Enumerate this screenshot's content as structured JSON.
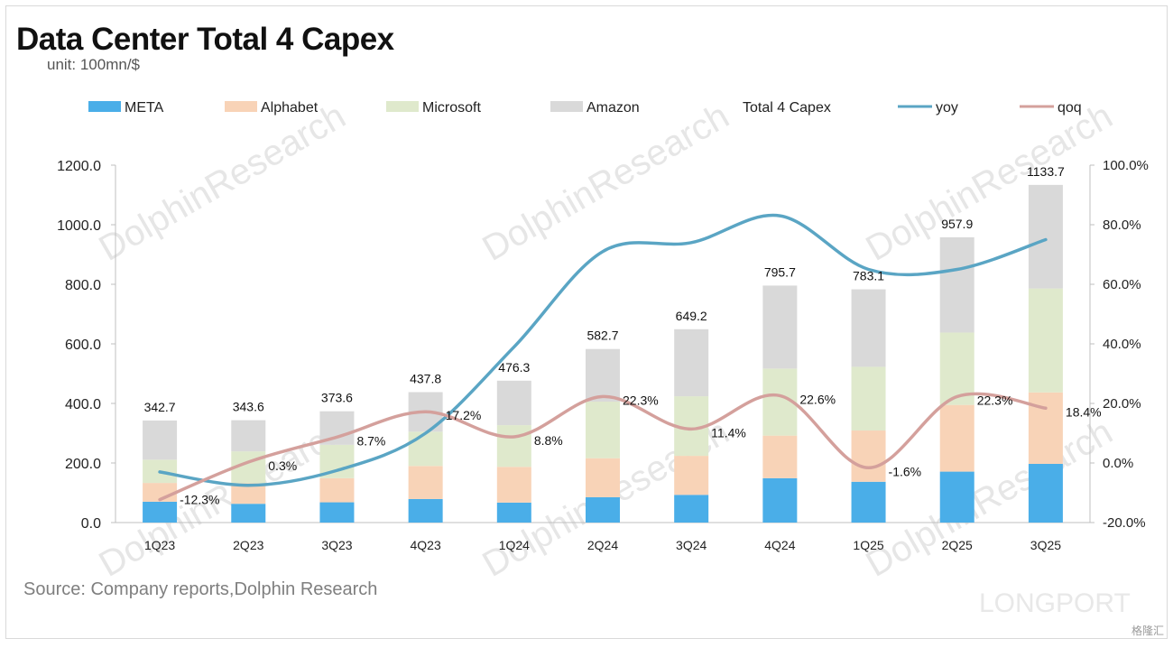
{
  "title": "Data Center Total 4 Capex",
  "unit": "unit: 100mn/$",
  "source": "Source: Company reports,Dolphin Research",
  "watermark": "DolphinResearch",
  "brand": "LONGPORT",
  "badge": "格隆汇",
  "colors": {
    "meta": "#4aaee8",
    "alphabet": "#f8d3b7",
    "microsoft": "#dfe9cc",
    "amazon": "#d9d9d9",
    "yoy": "#5aa5c4",
    "qoq": "#d4a09c"
  },
  "chart_data": {
    "type": "bar",
    "stacked": true,
    "categories": [
      "1Q23",
      "2Q23",
      "3Q23",
      "4Q23",
      "1Q24",
      "2Q24",
      "3Q24",
      "4Q24",
      "1Q25",
      "2Q25",
      "3Q25"
    ],
    "series": [
      {
        "name": "META",
        "values": [
          70,
          63,
          68,
          79,
          67,
          85,
          93,
          149,
          137,
          171,
          197
        ]
      },
      {
        "name": "Alphabet",
        "values": [
          63,
          69,
          81,
          111,
          120,
          131,
          131,
          143,
          172,
          224,
          240
        ]
      },
      {
        "name": "Microsoft",
        "values": [
          78,
          107,
          112,
          115,
          140,
          190,
          200,
          225,
          214,
          243,
          349
        ]
      },
      {
        "name": "Amazon",
        "values": [
          131.7,
          104.6,
          112.6,
          132.8,
          149.3,
          176.7,
          225.2,
          278.7,
          260.1,
          319.9,
          347.7
        ]
      }
    ],
    "totals_name": "Total 4 Capex",
    "totals": [
      342.7,
      343.6,
      373.6,
      437.8,
      476.3,
      582.7,
      649.2,
      795.7,
      783.1,
      957.9,
      1133.7
    ],
    "lines": [
      {
        "name": "yoy",
        "axis": "right",
        "values": [
          -3.0,
          -7.5,
          -2.5,
          10.0,
          39.0,
          71.0,
          74.0,
          83.0,
          65.0,
          65.0,
          75.0
        ]
      },
      {
        "name": "qoq",
        "axis": "right",
        "values": [
          -12.3,
          0.3,
          8.7,
          17.2,
          8.8,
          22.3,
          11.4,
          22.6,
          -1.6,
          22.3,
          18.4
        ]
      }
    ],
    "qoq_labels": [
      "-12.3%",
      "0.3%",
      "8.7%",
      "17.2%",
      "8.8%",
      "22.3%",
      "11.4%",
      "22.6%",
      "-1.6%",
      "22.3%",
      "18.4%"
    ],
    "ylim": [
      0,
      1200
    ],
    "y_ticks": [
      "0.0",
      "200.0",
      "400.0",
      "600.0",
      "800.0",
      "1000.0",
      "1200.0"
    ],
    "y2lim": [
      -20,
      100
    ],
    "y2_ticks": [
      "-20.0%",
      "0.0%",
      "20.0%",
      "40.0%",
      "60.0%",
      "80.0%",
      "100.0%"
    ],
    "legend": [
      "META",
      "Alphabet",
      "Microsoft",
      "Amazon",
      "Total 4 Capex",
      "yoy",
      "qoq"
    ],
    "legend_position": "top"
  }
}
